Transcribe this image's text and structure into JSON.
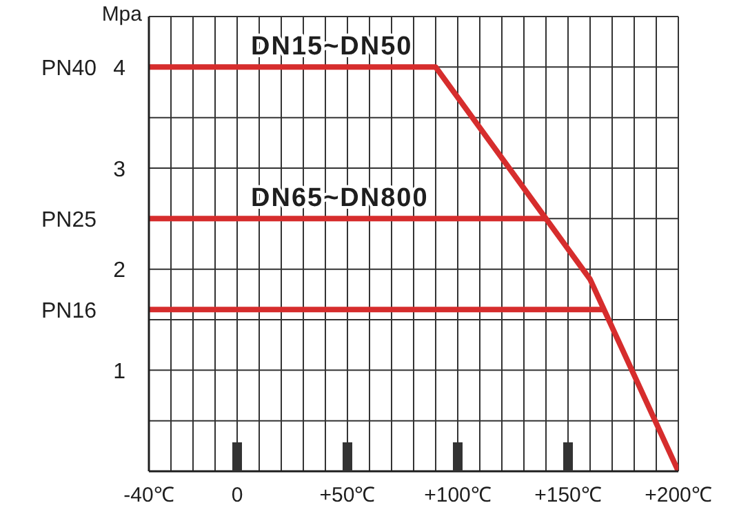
{
  "chart_data": {
    "type": "line",
    "ylabel": "Mpa",
    "series": [
      {
        "name": "DN15~DN50",
        "color": "#d62d2d",
        "x": [
          -40,
          90,
          140,
          160,
          200
        ],
        "values": [
          4,
          4,
          2.5,
          1.9,
          0
        ]
      },
      {
        "name": "DN65~DN800",
        "color": "#d62d2d",
        "x": [
          -40,
          140
        ],
        "values": [
          2.5,
          2.5
        ]
      },
      {
        "color": "#d62d2d",
        "x": [
          -40,
          166
        ],
        "values": [
          1.6,
          1.6
        ]
      }
    ],
    "xlim": [
      -40,
      200
    ],
    "xticks": [
      {
        "value": -40,
        "label": "-40℃"
      },
      {
        "value": -30,
        "label": null
      },
      {
        "value": -20,
        "label": null
      },
      {
        "value": -10,
        "label": null
      },
      0,
      {
        "value": 10,
        "label": null
      },
      {
        "value": 20,
        "label": null
      },
      {
        "value": 30,
        "label": null
      },
      {
        "value": 40,
        "label": null
      },
      {
        "value": 50,
        "label": "+50℃"
      },
      {
        "value": 60,
        "label": null
      },
      {
        "value": 70,
        "label": null
      },
      {
        "value": 80,
        "label": null
      },
      {
        "value": 90,
        "label": null
      },
      {
        "value": 100,
        "label": "+100℃"
      },
      {
        "value": 110,
        "label": null
      },
      {
        "value": 120,
        "label": null
      },
      {
        "value": 130,
        "label": null
      },
      {
        "value": 140,
        "label": null
      },
      {
        "value": 150,
        "label": "+150℃"
      },
      {
        "value": 160,
        "label": null
      },
      {
        "value": 170,
        "label": null
      },
      {
        "value": 180,
        "label": null
      },
      {
        "value": 190,
        "label": null
      },
      {
        "value": 200,
        "label": "+200℃"
      }
    ],
    "ylim": [
      0,
      4.5
    ],
    "yticks": [
      {
        "value": 0,
        "label": null
      },
      {
        "value": 0.5,
        "label": null
      },
      1,
      {
        "value": 1.5,
        "label": null
      },
      2,
      {
        "value": 2.5,
        "label": null
      },
      3,
      {
        "value": 3.5,
        "label": null
      },
      4,
      {
        "value": 4.5,
        "label": null
      }
    ],
    "annotations": [
      "PN40",
      "PN25",
      "PN16"
    ],
    "grid": true
  }
}
